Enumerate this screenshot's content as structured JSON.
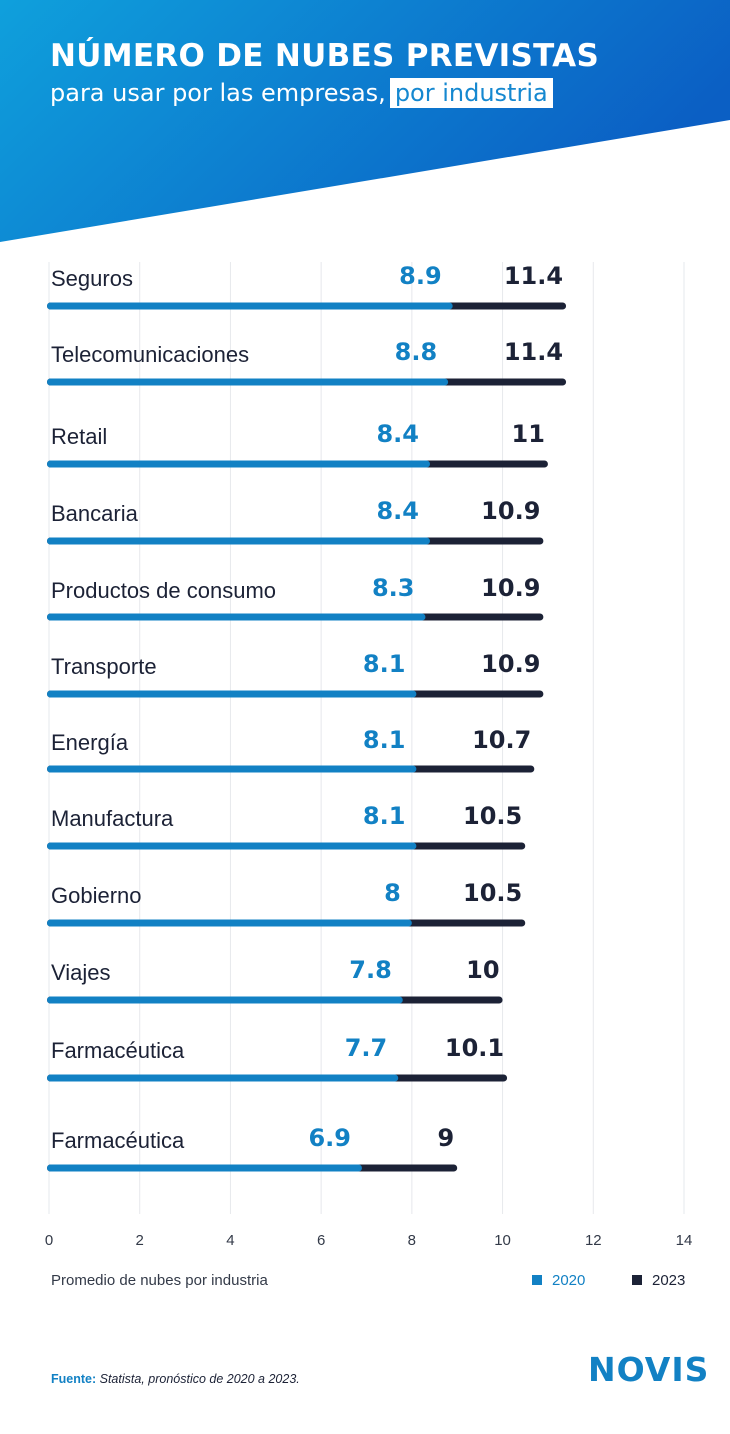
{
  "header": {
    "title": "NÚMERO DE NUBES PREVISTAS",
    "subtitle_main": "para usar por las empresas,",
    "subtitle_highlight": "por industria"
  },
  "colors": {
    "series_2020": "#1281c4",
    "series_2023": "#1c2236",
    "header_gradient": [
      "#0fa0dc",
      "#0b5fc4"
    ]
  },
  "chart_data": {
    "type": "bar",
    "orientation": "horizontal",
    "stacking": "overlay",
    "categories": [
      "Seguros",
      "Telecomunicaciones",
      "Retail",
      "Bancaria",
      "Productos de consumo",
      "Transporte",
      "Energía",
      "Manufactura",
      "Gobierno",
      "Viajes",
      "Farmacéutica",
      "Farmacéutica"
    ],
    "series": [
      {
        "name": "2020",
        "values": [
          8.9,
          8.8,
          8.4,
          8.4,
          8.3,
          8.1,
          8.1,
          8.1,
          8,
          7.8,
          7.7,
          6.9
        ]
      },
      {
        "name": "2023",
        "values": [
          11.4,
          11.4,
          11,
          10.9,
          10.9,
          10.9,
          10.7,
          10.5,
          10.5,
          10,
          10.1,
          9
        ]
      }
    ],
    "value_labels": {
      "2020": [
        "8.9",
        "8.8",
        "8.4",
        "8.4",
        "8.3",
        "8.1",
        "8.1",
        "8.1",
        "8",
        "7.8",
        "7.7",
        "6.9"
      ],
      "2023": [
        "11.4",
        "11.4",
        "11",
        "10.9",
        "10.9",
        "10.9",
        "10.7",
        "10.5",
        "10.5",
        "10",
        "10.1",
        "9"
      ]
    },
    "xlim": [
      0,
      14
    ],
    "xticks": [
      "0",
      "2",
      "4",
      "6",
      "8",
      "10",
      "12",
      "14"
    ],
    "xlabel": "Promedio de nubes por industria",
    "grid": "vertical",
    "legend": [
      {
        "name": "2020"
      },
      {
        "name": "2023"
      }
    ],
    "legend_position": "bottom-right"
  },
  "footer": {
    "source_label": "Fuente:",
    "source_text": "Statista, pronóstico de 2020 a 2023.",
    "logo": "NOVIS"
  }
}
